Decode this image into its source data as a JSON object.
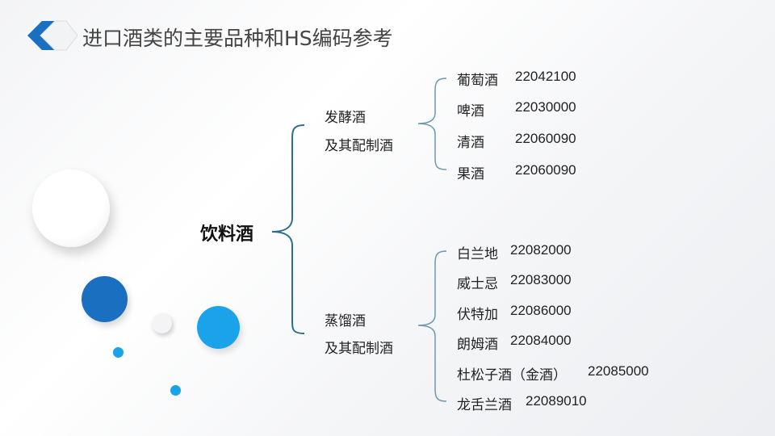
{
  "title": "进口酒类的主要品种和HS编码参考",
  "root": "饮料酒",
  "groups": [
    {
      "label_line1": "发酵酒",
      "label_line2": "及其配制酒",
      "items": [
        {
          "name": "葡萄酒",
          "code": "22042100"
        },
        {
          "name": "啤酒",
          "code": "22030000"
        },
        {
          "name": "清酒",
          "code": "22060090"
        },
        {
          "name": "果酒",
          "code": "22060090"
        }
      ]
    },
    {
      "label_line1": "蒸馏酒",
      "label_line2": "及其配制酒",
      "items": [
        {
          "name": "白兰地",
          "code": "22082000"
        },
        {
          "name": "威士忌",
          "code": "22083000"
        },
        {
          "name": "伏特加",
          "code": "22086000"
        },
        {
          "name": "朗姆酒",
          "code": "22084000"
        },
        {
          "name": "杜松子酒（金酒）",
          "code": "22085000"
        },
        {
          "name": "龙舌兰酒",
          "code": "22089010"
        }
      ]
    }
  ],
  "colors": {
    "brace": "#2f6d8c",
    "accent_dark": "#1b6fc0",
    "accent_light": "#1aa3e8"
  }
}
